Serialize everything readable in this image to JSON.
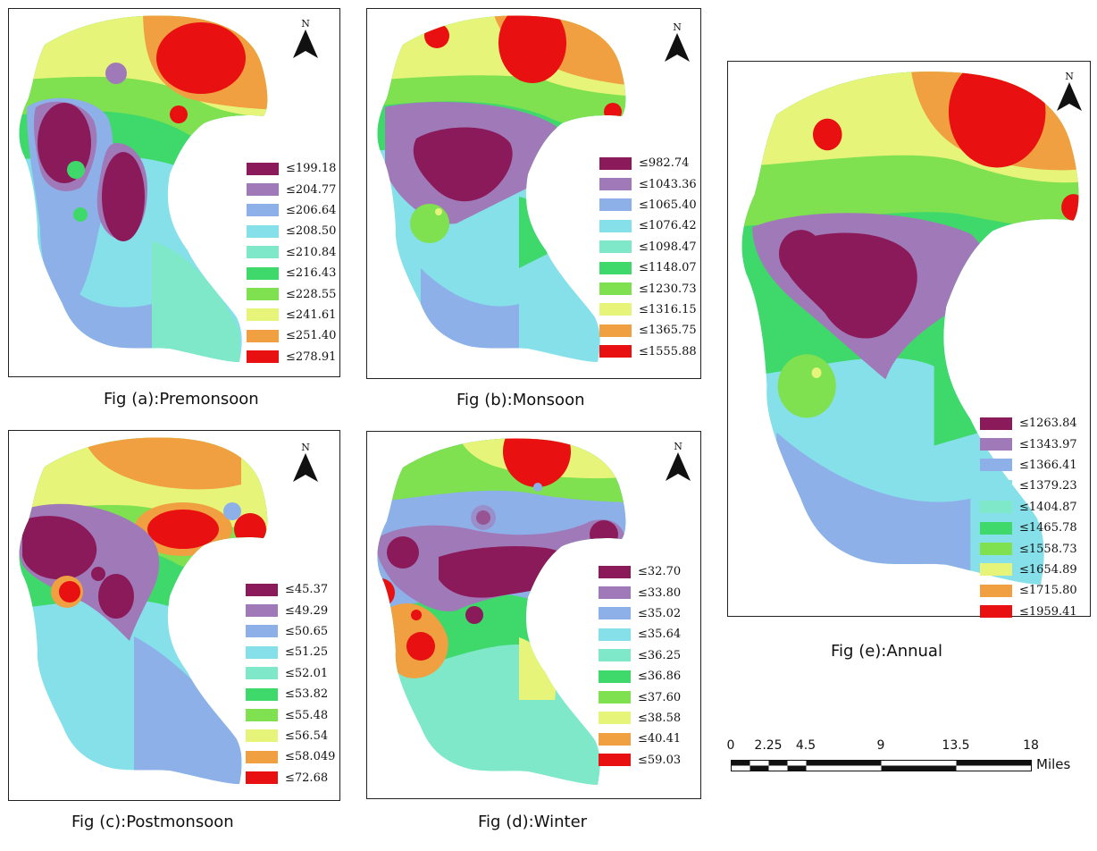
{
  "colors": {
    "c0": "#8b1a5a",
    "c1": "#a07ab8",
    "c2": "#8db0e8",
    "c3": "#86e0ea",
    "c4": "#7fe8c8",
    "c5": "#3fd86a",
    "c6": "#7fe050",
    "c7": "#e6f57a",
    "c8": "#f0a040",
    "c9": "#e81010"
  },
  "north_label": "N",
  "north_arrow_icon": "north-arrow-icon",
  "panels": [
    {
      "id": "a",
      "caption": "Fig (a):Premonsoon",
      "legend": [
        "≤199.18",
        "≤204.77",
        "≤206.64",
        "≤208.50",
        "≤210.84",
        "≤216.43",
        "≤228.55",
        "≤241.61",
        "≤251.40",
        "≤278.91"
      ]
    },
    {
      "id": "b",
      "caption": "Fig (b):Monsoon",
      "legend": [
        "≤982.74",
        "≤1043.36",
        "≤1065.40",
        "≤1076.42",
        "≤1098.47",
        "≤1148.07",
        "≤1230.73",
        "≤1316.15",
        "≤1365.75",
        "≤1555.88"
      ]
    },
    {
      "id": "c",
      "caption": "Fig (c):Postmonsoon",
      "legend": [
        "≤45.37",
        "≤49.29",
        "≤50.65",
        "≤51.25",
        "≤52.01",
        "≤53.82",
        "≤55.48",
        "≤56.54",
        "≤58.049",
        "≤72.68"
      ]
    },
    {
      "id": "d",
      "caption": "Fig (d):Winter",
      "legend": [
        "≤32.70",
        "≤33.80",
        "≤35.02",
        "≤35.64",
        "≤36.25",
        "≤36.86",
        "≤37.60",
        "≤38.58",
        "≤40.41",
        "≤59.03"
      ]
    },
    {
      "id": "e",
      "caption": "Fig (e):Annual",
      "legend": [
        "≤1263.84",
        "≤1343.97",
        "≤1366.41",
        "≤1379.23",
        "≤1404.87",
        "≤1465.78",
        "≤1558.73",
        "≤1654.89",
        "≤1715.80",
        "≤1959.41"
      ]
    }
  ],
  "scale": {
    "ticks": [
      "0",
      "2.25",
      "4.5",
      "9",
      "13.5",
      "18"
    ],
    "unit": "Miles"
  }
}
